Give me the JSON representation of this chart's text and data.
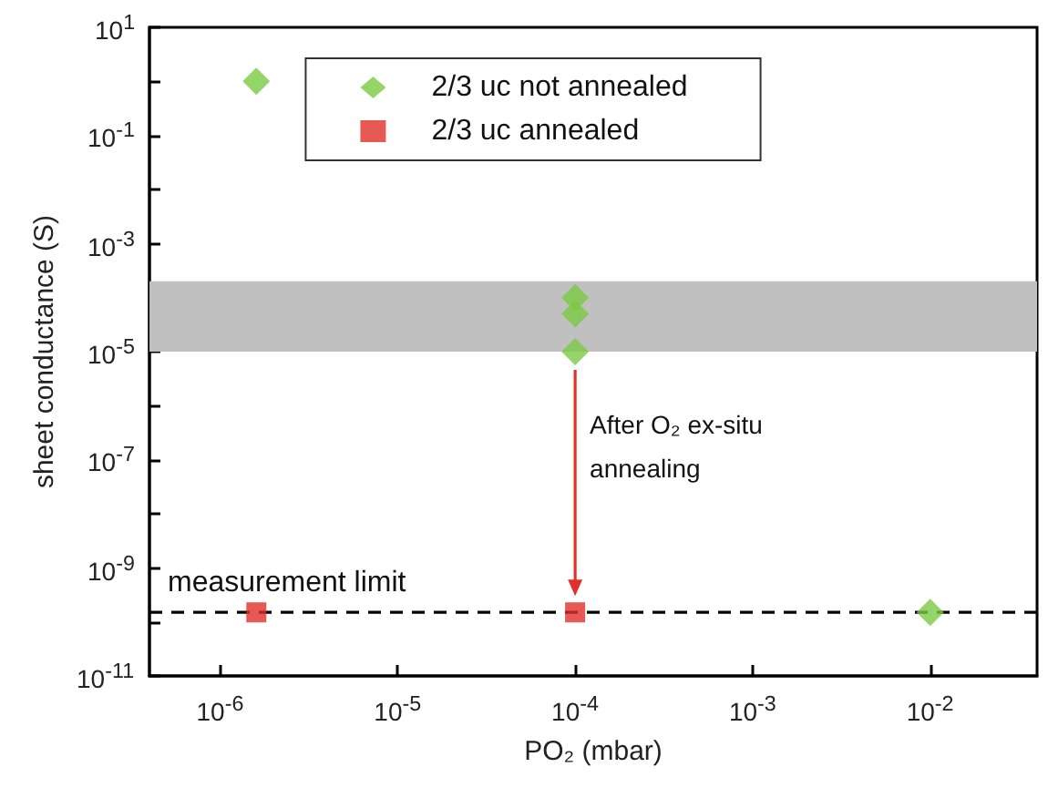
{
  "chart_data": {
    "type": "scatter",
    "xlabel": "PO₂ (mbar)",
    "ylabel": "sheet conductance (S)",
    "log": "xy",
    "xlim": [
      4e-07,
      0.04
    ],
    "xticks": [
      {
        "value": 1e-06,
        "label": "10$^{-6}$"
      },
      {
        "value": 1e-05,
        "label": "10$^{-5}$"
      },
      {
        "value": 0.0001,
        "label": "10$^{-4}$"
      },
      {
        "value": 0.001,
        "label": "10$^{-3}$"
      },
      {
        "value": 0.01,
        "label": "10$^{-2}$"
      }
    ],
    "ylim": [
      1e-11,
      10
    ],
    "yticks": [
      {
        "value": 1e-11,
        "label": "10$^{-11}$"
      },
      {
        "value": 1e-10,
        "label": null
      },
      {
        "value": 1e-09,
        "label": "10$^{-9}$"
      },
      {
        "value": 1e-08,
        "label": null
      },
      {
        "value": 1e-07,
        "label": "10$^{-7}$"
      },
      {
        "value": 1e-06,
        "label": null
      },
      {
        "value": 1e-05,
        "label": "10$^{-5}$"
      },
      {
        "value": 0.0001,
        "label": null
      },
      {
        "value": 0.001,
        "label": "10$^{-3}$"
      },
      {
        "value": 0.01,
        "label": null
      },
      {
        "value": 0.1,
        "label": "10$^{-1}$"
      },
      {
        "value": 1,
        "label": null
      },
      {
        "value": 10,
        "label": "10$^{1}$"
      }
    ],
    "series": [
      {
        "name": "2/3 uc not annealed",
        "color": "#7ac943",
        "marker": "diamond",
        "x": [
          1.6e-06,
          0.0001,
          0.0001,
          0.0001,
          0.01
        ],
        "values": [
          1,
          0.0001,
          5e-05,
          1e-05,
          1.5e-10
        ]
      },
      {
        "name": "2/3 uc annealed",
        "color": "#e0302a",
        "marker": "square",
        "x": [
          1.6e-06,
          0.0001
        ],
        "values": [
          1.5e-10,
          1.5e-10
        ]
      }
    ],
    "ref_lines": [
      {
        "axis": "y",
        "value": 1.5e-10,
        "label": "measurement limit",
        "color": "#000000",
        "line_style": "dashed"
      }
    ],
    "bands": [
      {
        "axis": "y",
        "from": 1e-05,
        "to": 0.0002,
        "color": "#c0c0c0"
      }
    ],
    "annotations": [
      {
        "text": "After O₂ ex-situ annealing",
        "x": 0.0001,
        "y": 1e-05
      }
    ],
    "legend": "top",
    "grid": false
  }
}
